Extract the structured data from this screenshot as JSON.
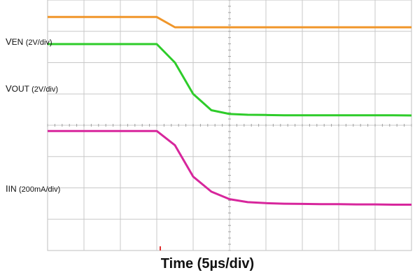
{
  "chart_data": {
    "type": "line",
    "xlabel": "Time (5µs/div)",
    "grid": true,
    "x": [
      0,
      0.5,
      1,
      1.5,
      2,
      2.5,
      3,
      3.5,
      4,
      4.5,
      5,
      5.5,
      6,
      6.5,
      7,
      7.5,
      8,
      8.5,
      9,
      9.5,
      10
    ],
    "series": [
      {
        "name_prefix": "V",
        "name_sub": "EN",
        "name_unit": "(2V/div)",
        "color": "#f0962a",
        "values": [
          9.32,
          9.32,
          9.32,
          9.32,
          9.32,
          9.32,
          9.32,
          8.91,
          8.91,
          8.91,
          8.91,
          8.91,
          8.91,
          8.91,
          8.91,
          8.91,
          8.91,
          8.91,
          8.91,
          8.91,
          8.91
        ]
      },
      {
        "name_prefix": "V",
        "name_sub": "OUT",
        "name_unit": "(2V/div)",
        "color": "#2ecc2a",
        "values": [
          8.24,
          8.24,
          8.24,
          8.24,
          8.24,
          8.24,
          8.24,
          7.5,
          6.25,
          5.6,
          5.45,
          5.42,
          5.41,
          5.4,
          5.4,
          5.4,
          5.4,
          5.4,
          5.4,
          5.4,
          5.39
        ]
      },
      {
        "name_prefix": "I",
        "name_sub": "IN",
        "name_unit": "(200mA/div)",
        "color": "#d7269c",
        "values": [
          4.77,
          4.77,
          4.77,
          4.77,
          4.77,
          4.77,
          4.77,
          4.2,
          2.95,
          2.35,
          2.05,
          1.93,
          1.89,
          1.87,
          1.86,
          1.85,
          1.85,
          1.84,
          1.84,
          1.83,
          1.83
        ]
      }
    ]
  }
}
